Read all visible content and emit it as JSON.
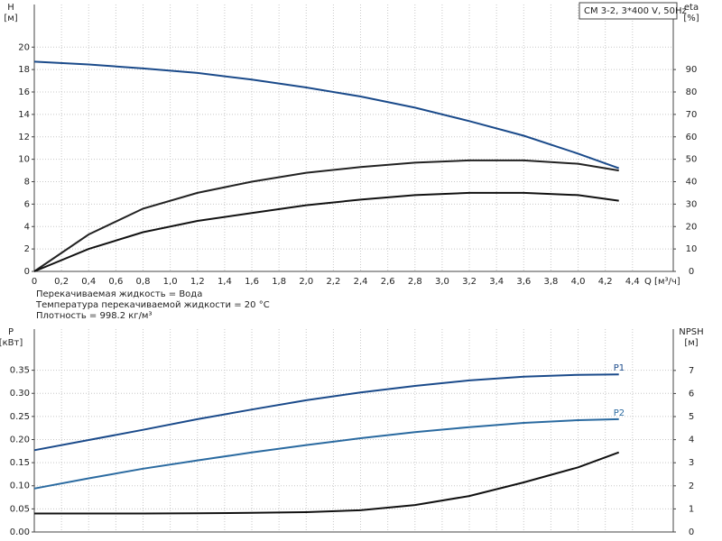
{
  "chart_data": [
    {
      "type": "line",
      "title": "CM 3-2, 3*400 V, 50Hz",
      "y_label": "H",
      "y_unit": "[м]",
      "y2_label": "eta",
      "y2_unit": "[%]",
      "x_label": "Q [м³/ч]",
      "annotations": [
        "Перекачиваемая жидкость = Вода",
        "Температура перекачиваемой жидкости = 20 °C",
        "Плотность = 998.2 кг/м³"
      ],
      "x": [
        0,
        0.4,
        0.8,
        1.2,
        1.6,
        2.0,
        2.4,
        2.8,
        3.2,
        3.6,
        4.0,
        4.3
      ],
      "series": [
        {
          "color": "#1a4a8a",
          "values": [
            18.7,
            18.45,
            18.1,
            17.7,
            17.1,
            16.4,
            15.6,
            14.6,
            13.4,
            12.1,
            10.5,
            9.2
          ]
        },
        {
          "color": "#222222",
          "axis": "y2",
          "values": [
            0,
            16.5,
            28,
            35,
            40,
            44,
            46.5,
            48.5,
            49.5,
            49.5,
            48,
            45
          ]
        },
        {
          "color": "#111111",
          "axis": "y2",
          "values": [
            0,
            10,
            17.5,
            22.5,
            26,
            29.5,
            32,
            34,
            35,
            35,
            34,
            31.5
          ]
        }
      ],
      "xlim": [
        0,
        4.7
      ],
      "xticks": [
        0,
        {
          "value": 0.2,
          "label": "0,2"
        },
        {
          "value": 0.4,
          "label": "0,4"
        },
        {
          "value": 0.6,
          "label": "0,6"
        },
        {
          "value": 0.8,
          "label": "0,8"
        },
        {
          "value": 1.0,
          "label": "1,0"
        },
        {
          "value": 1.2,
          "label": "1,2"
        },
        {
          "value": 1.4,
          "label": "1,4"
        },
        {
          "value": 1.6,
          "label": "1,6"
        },
        {
          "value": 1.8,
          "label": "1,8"
        },
        {
          "value": 2.0,
          "label": "2,0"
        },
        {
          "value": 2.2,
          "label": "2,2"
        },
        {
          "value": 2.4,
          "label": "2,4"
        },
        {
          "value": 2.6,
          "label": "2,6"
        },
        {
          "value": 2.8,
          "label": "2,8"
        },
        {
          "value": 3.0,
          "label": "3,0"
        },
        {
          "value": 3.2,
          "label": "3,2"
        },
        {
          "value": 3.4,
          "label": "3,4"
        },
        {
          "value": 3.6,
          "label": "3,6"
        },
        {
          "value": 3.8,
          "label": "3,8"
        },
        {
          "value": 4.0,
          "label": "4,0"
        },
        {
          "value": 4.2,
          "label": "4,2"
        },
        {
          "value": 4.4,
          "label": "4,4"
        }
      ],
      "ylim": [
        0,
        23.8
      ],
      "yticks": [
        0,
        2,
        4,
        6,
        8,
        10,
        12,
        14,
        16,
        18,
        20
      ],
      "y2lim": [
        0,
        119
      ],
      "y2ticks": [
        0,
        10,
        20,
        30,
        40,
        50,
        60,
        70,
        80,
        90
      ],
      "grid": true
    },
    {
      "type": "line",
      "y_label": "P",
      "y_unit": "[кВт]",
      "y2_label": "NPSH",
      "y2_unit": "[м]",
      "x": [
        0,
        0.4,
        0.8,
        1.2,
        1.6,
        2.0,
        2.4,
        2.8,
        3.2,
        3.6,
        4.0,
        4.3
      ],
      "series": [
        {
          "name": "P1",
          "color": "#1a4a8a",
          "values": [
            0.177,
            0.199,
            0.221,
            0.244,
            0.265,
            0.285,
            0.302,
            0.316,
            0.328,
            0.336,
            0.34,
            0.341
          ]
        },
        {
          "name": "P2",
          "color": "#2a6aa0",
          "values": [
            0.094,
            0.116,
            0.137,
            0.155,
            0.172,
            0.188,
            0.203,
            0.216,
            0.227,
            0.236,
            0.242,
            0.244
          ]
        },
        {
          "color": "#111111",
          "axis": "y2",
          "values": [
            0.8,
            0.8,
            0.8,
            0.81,
            0.83,
            0.86,
            0.94,
            1.17,
            1.56,
            2.15,
            2.8,
            3.45
          ]
        }
      ],
      "xlim": [
        0,
        4.7
      ],
      "ylim": [
        0,
        0.439
      ],
      "yticks": [
        {
          "value": 0,
          "label": "0.00"
        },
        0.05,
        {
          "value": 0.1,
          "label": "0.10"
        },
        0.15,
        {
          "value": 0.2,
          "label": "0.20"
        },
        0.25,
        {
          "value": 0.3,
          "label": "0.30"
        },
        0.35
      ],
      "y2lim": [
        0,
        8.79
      ],
      "y2ticks": [
        0,
        1,
        2,
        3,
        4,
        5,
        6,
        7
      ],
      "grid": true
    }
  ]
}
